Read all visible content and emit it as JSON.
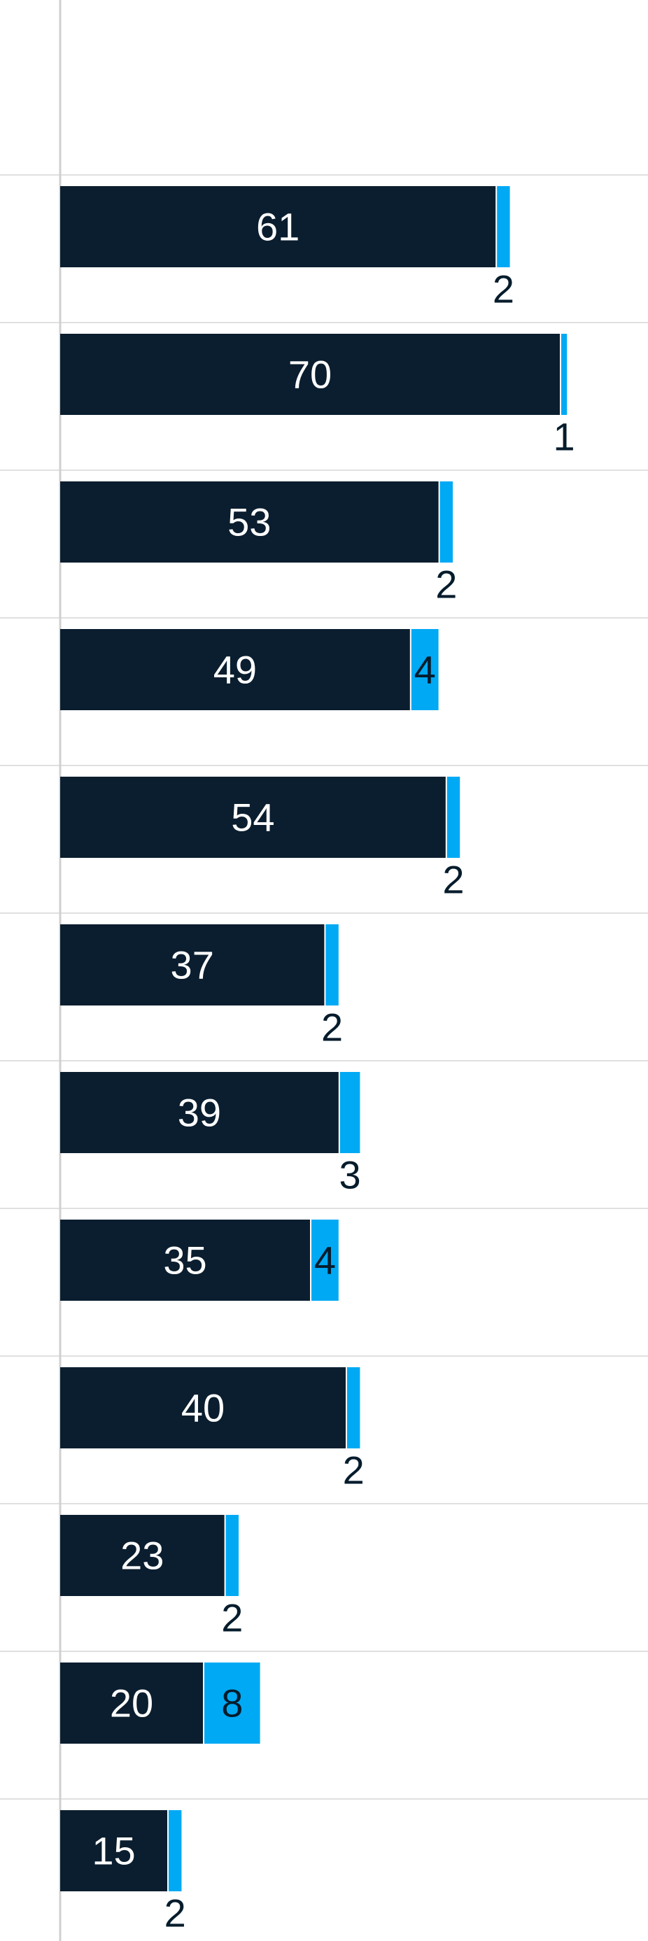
{
  "colors": {
    "series1": "#0b1e2f",
    "series2": "#00a9f4",
    "gridline": "#e0e0e0",
    "axis": "#d0d0d0",
    "label_on_dark": "#ffffff",
    "label_on_light": "#051c2c"
  },
  "chart_data": {
    "type": "bar",
    "orientation": "horizontal",
    "stacked": true,
    "grid": true,
    "categories": [
      "",
      "",
      "",
      "",
      "",
      "",
      "",
      "",
      "",
      "",
      "",
      ""
    ],
    "series": [
      {
        "values": [
          61,
          70,
          53,
          49,
          54,
          37,
          39,
          35,
          40,
          23,
          20,
          15
        ]
      },
      {
        "values": [
          2,
          1,
          2,
          4,
          2,
          2,
          3,
          4,
          2,
          2,
          8,
          2
        ]
      }
    ],
    "xlim": [
      0,
      80
    ]
  }
}
